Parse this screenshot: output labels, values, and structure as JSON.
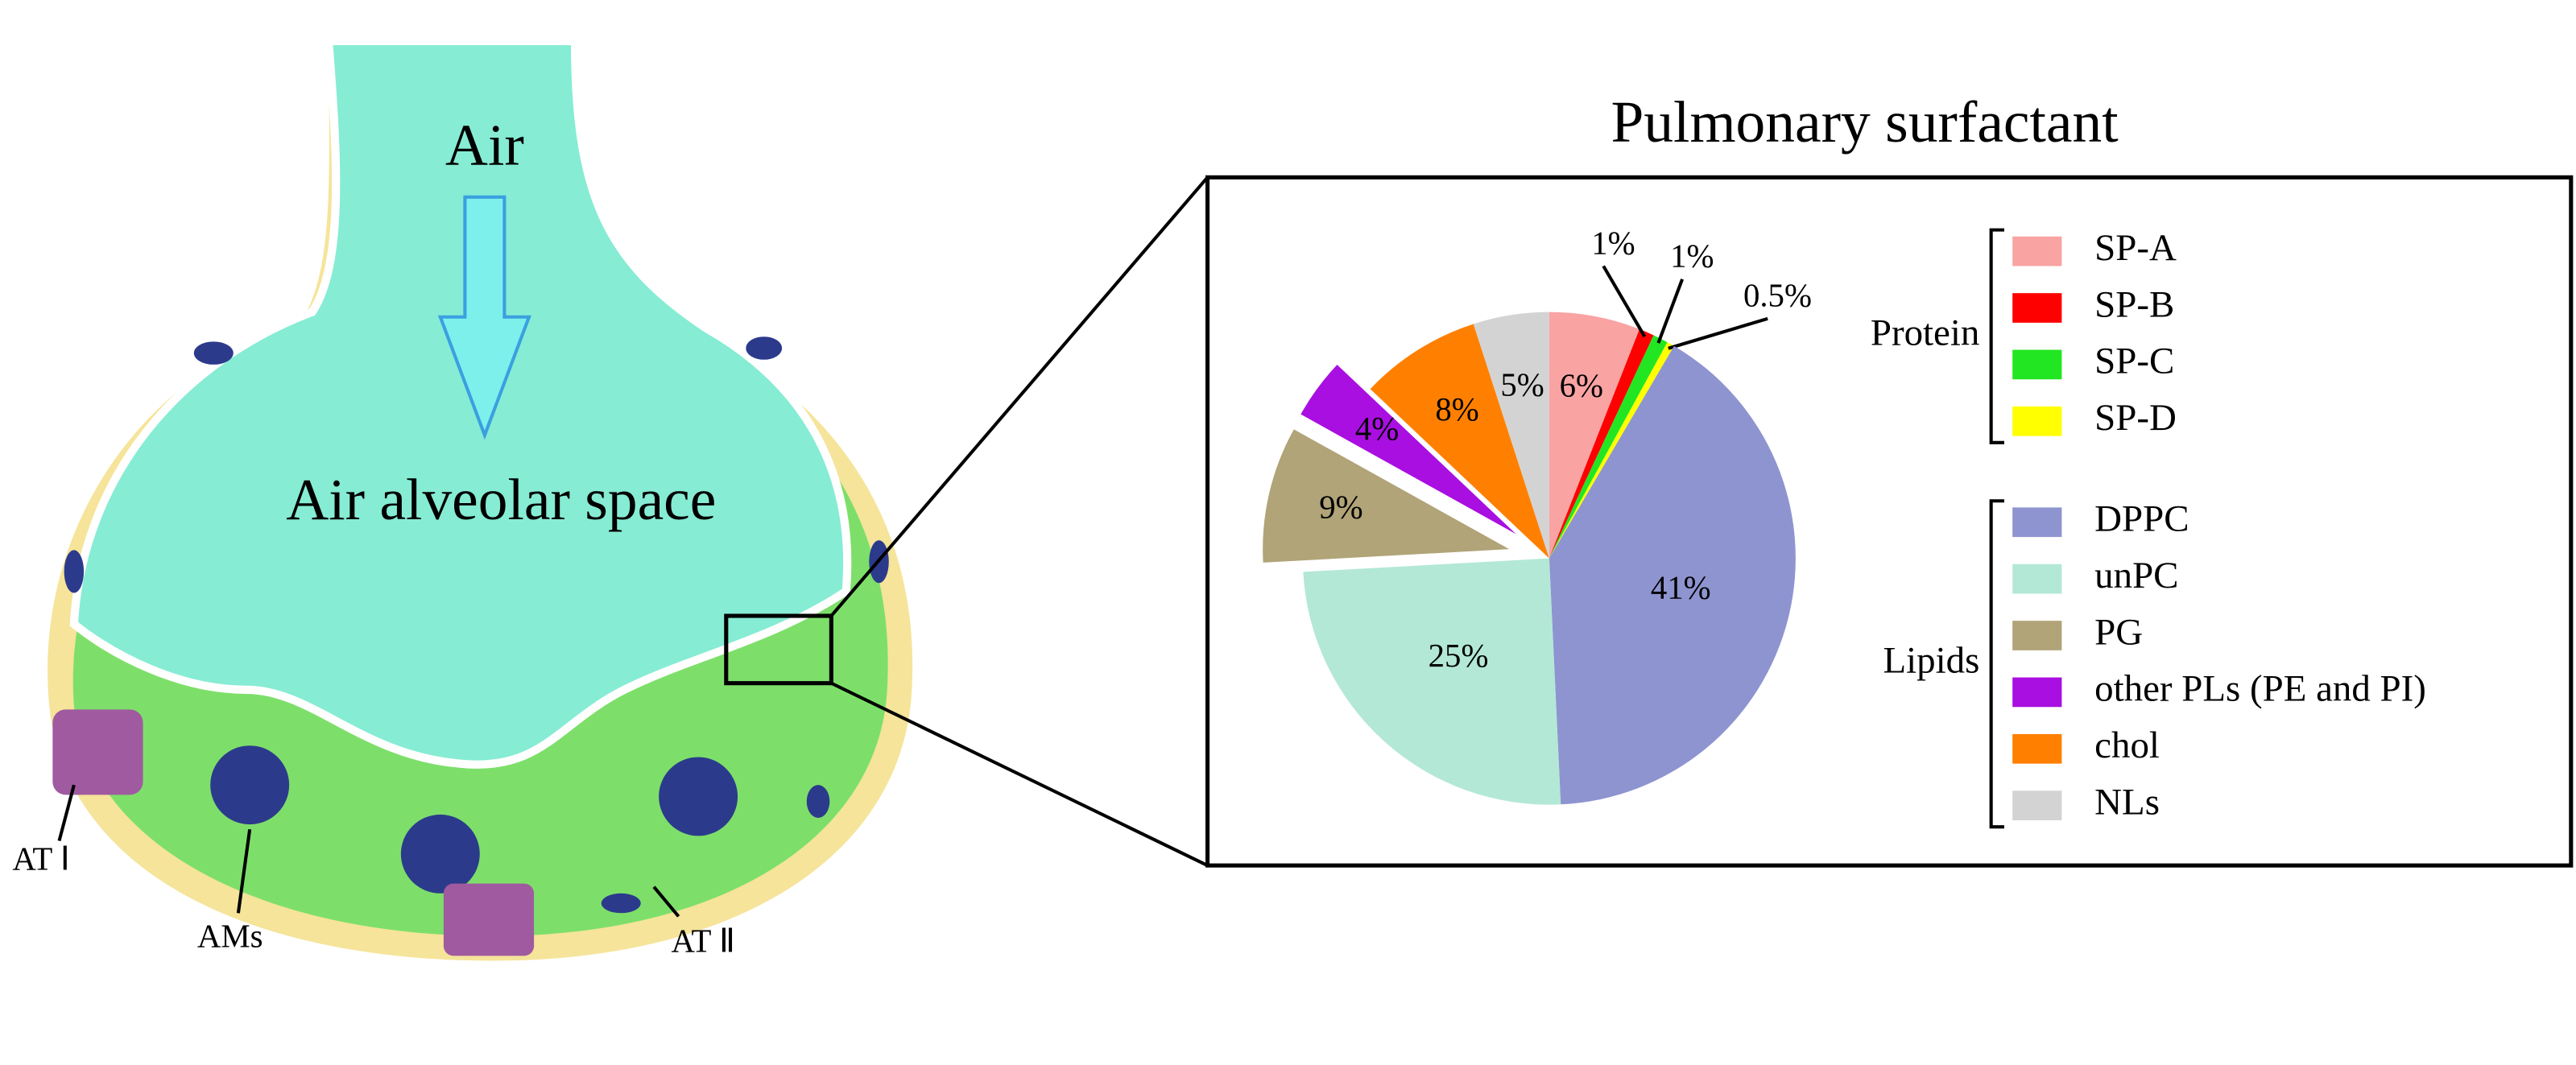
{
  "diagram": {
    "labels": {
      "air": "Air",
      "space": "Air alveolar space",
      "at1": "AT Ⅰ",
      "ams": "AMs",
      "at2": "AT Ⅱ"
    }
  },
  "chart_data": {
    "type": "pie",
    "title": "Pulmonary surfactant",
    "categories": [
      "SP-A",
      "SP-B",
      "SP-C",
      "SP-D",
      "DPPC",
      "unPC",
      "PG",
      "other PLs (PE and PI)",
      "chol",
      "NLs"
    ],
    "values": [
      6,
      1,
      1,
      0.5,
      41,
      25,
      9,
      4,
      8,
      5
    ],
    "value_labels": [
      "6%",
      "1%",
      "1%",
      "0.5%",
      "41%",
      "25%",
      "9%",
      "4%",
      "8%",
      "5%"
    ],
    "colors": [
      "#f9a3a3",
      "#ff0000",
      "#22e622",
      "#ffff00",
      "#8e94d0",
      "#b3e8d6",
      "#b0a478",
      "#a90fe0",
      "#ff8000",
      "#d3d3d3"
    ],
    "explode": [
      6,
      7
    ],
    "legend_groups": [
      {
        "name": "Protein",
        "size": 4
      },
      {
        "name": "Lipids",
        "size": 6
      }
    ]
  }
}
